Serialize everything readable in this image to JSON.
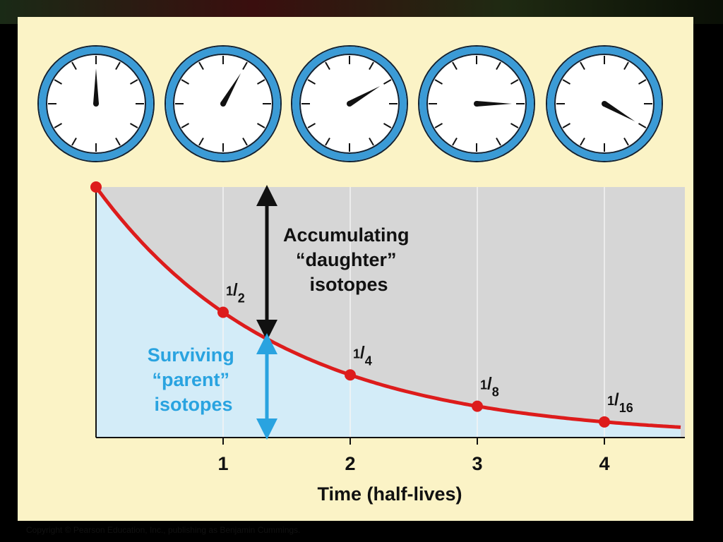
{
  "colors": {
    "panel_bg": "#fbf3c6",
    "daughter_region": "#d6d6d6",
    "parent_region": "#d3ecf8",
    "curve": "#dd1c1c",
    "clock_ring": "#3b9bd6",
    "parent_label": "#29a3e0",
    "text": "#111111"
  },
  "clocks": [
    {
      "hand_angle_deg": 0
    },
    {
      "hand_angle_deg": 30
    },
    {
      "hand_angle_deg": 60
    },
    {
      "hand_angle_deg": 90
    },
    {
      "hand_angle_deg": 120
    }
  ],
  "labels": {
    "daughter": [
      "Accumulating",
      "“daughter”",
      "isotopes"
    ],
    "parent": [
      "Surviving",
      "“parent”",
      "isotopes"
    ]
  },
  "copyright": "Copyright © Pearson Education, Inc., publishing as Benjamin Cummings.",
  "chart_data": {
    "type": "line",
    "title": "",
    "xlabel": "Time (half-lives)",
    "ylabel": "",
    "xlim": [
      0,
      4.6
    ],
    "ylim": [
      0,
      1
    ],
    "x_ticks": [
      "1",
      "2",
      "3",
      "4"
    ],
    "x_tick_values": [
      1,
      2,
      3,
      4
    ],
    "grid": true,
    "series": [
      {
        "x": [
          0,
          1,
          2,
          3,
          4
        ],
        "y": [
          1,
          0.5,
          0.25,
          0.125,
          0.0625
        ],
        "point_labels": [
          "",
          "1/2",
          "1/4",
          "1/8",
          "1/16"
        ]
      }
    ]
  }
}
